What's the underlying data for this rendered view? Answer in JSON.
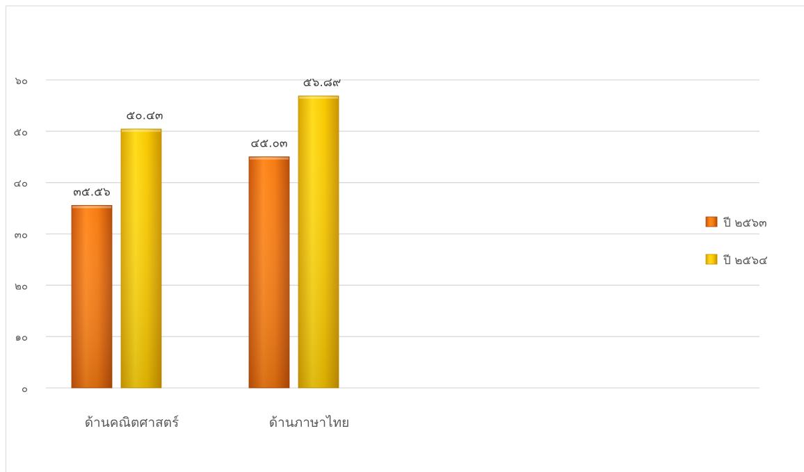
{
  "chart_data": {
    "type": "bar",
    "categories": [
      "ด้านคณิตศาสตร์",
      "ด้านภาษาไทย"
    ],
    "series": [
      {
        "name": "ปี ๒๕๖๓",
        "values": [
          35.56,
          45.03
        ],
        "labels": [
          "๓๕.๕๖",
          "๔๕.๐๓"
        ],
        "color": "#f07a12"
      },
      {
        "name": "ปี ๒๕๖๔",
        "values": [
          50.43,
          56.89
        ],
        "labels": [
          "๕๐.๔๓",
          "๕๖.๘๙"
        ],
        "color": "#f5c400"
      }
    ],
    "yticks": [
      0,
      10,
      20,
      30,
      40,
      50,
      60
    ],
    "ytick_labels": [
      "๐",
      "๑๐",
      "๒๐",
      "๓๐",
      "๔๐",
      "๕๐",
      "๖๐"
    ],
    "ylim": [
      0,
      60
    ],
    "grid": true,
    "legend": "right",
    "title": "",
    "xlabel": "",
    "ylabel": ""
  }
}
